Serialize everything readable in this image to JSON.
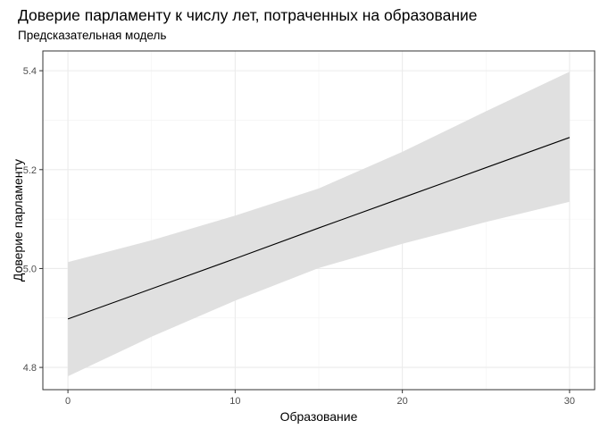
{
  "chart_data": {
    "type": "line",
    "title": "Доверие парламенту к числу лет, потраченных на образование",
    "subtitle": "Предсказательная модель",
    "xlabel": "Образование",
    "ylabel": "Доверие парламенту",
    "xlim": [
      -1.5,
      31.5
    ],
    "ylim": [
      4.755,
      5.44
    ],
    "x_ticks": [
      0,
      10,
      20,
      30
    ],
    "y_ticks": [
      4.8,
      5.0,
      5.2,
      5.4
    ],
    "x_tick_labels": [
      "0",
      "10",
      "20",
      "30"
    ],
    "y_tick_labels": [
      "4.8",
      "5.0",
      "5.2",
      "5.4"
    ],
    "grid": true,
    "series": [
      {
        "x": [
          0,
          5,
          10,
          15,
          20,
          25,
          30
        ],
        "y": [
          4.898,
          4.959,
          5.02,
          5.082,
          5.143,
          5.204,
          5.265
        ],
        "lower": [
          4.782,
          4.862,
          4.935,
          5.001,
          5.05,
          5.094,
          5.135
        ],
        "upper": [
          5.013,
          5.057,
          5.107,
          5.162,
          5.236,
          5.318,
          5.398
        ],
        "color": "#000000",
        "band_color": "#e0e0e0"
      }
    ]
  }
}
